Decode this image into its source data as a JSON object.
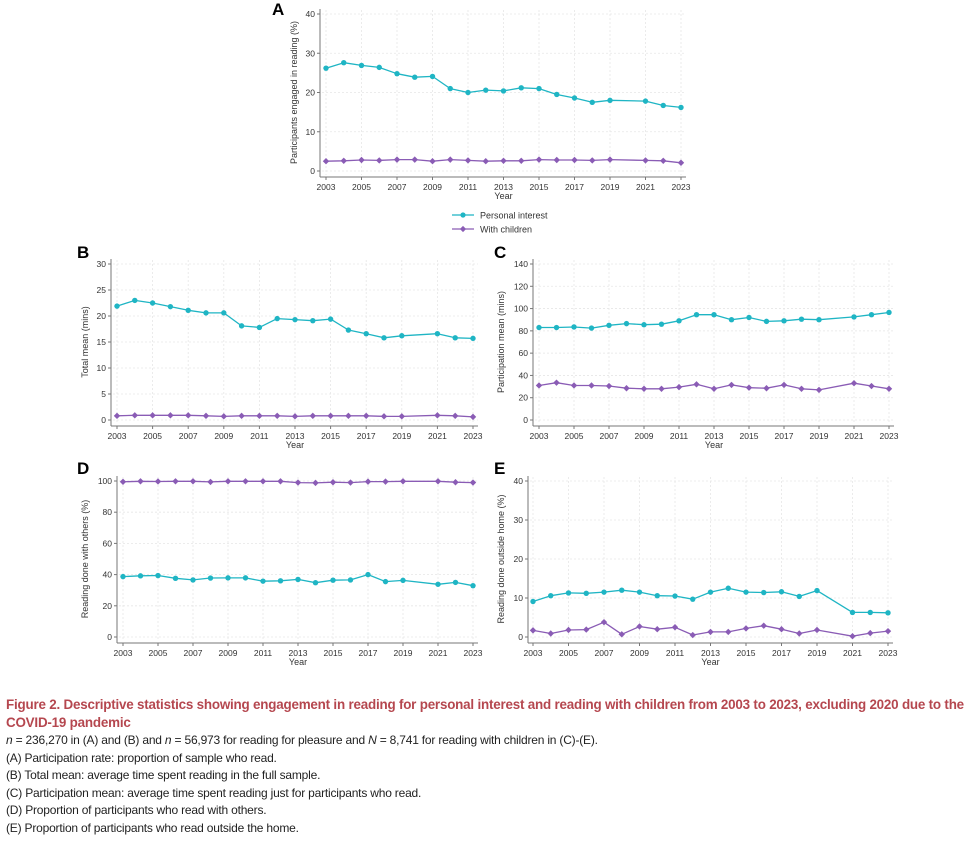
{
  "colors": {
    "personal": "#1fb5c4",
    "children": "#8a5cb5",
    "axis": "#777777",
    "grid": "#e6e6e6",
    "caption_title": "#b5474f"
  },
  "legend": {
    "items": [
      {
        "label": "Personal interest",
        "series": "personal"
      },
      {
        "label": "With children",
        "series": "children"
      }
    ]
  },
  "chart_data": [
    {
      "panel": "A",
      "type": "line",
      "xlabel": "Year",
      "ylabel": "Participants engaged in reading (%)",
      "ylim": [
        0,
        40
      ],
      "yticks": [
        0,
        10,
        20,
        30,
        40
      ],
      "xticks": [
        2003,
        2005,
        2007,
        2009,
        2011,
        2013,
        2015,
        2017,
        2019,
        2021,
        2023
      ],
      "x": [
        2003,
        2004,
        2005,
        2006,
        2007,
        2008,
        2009,
        2010,
        2011,
        2012,
        2013,
        2014,
        2015,
        2016,
        2017,
        2018,
        2019,
        2021,
        2022,
        2023
      ],
      "grid": true,
      "legend": "bottom",
      "series": [
        {
          "name": "Personal interest",
          "key": "personal",
          "values": [
            26.2,
            27.6,
            26.9,
            26.4,
            24.8,
            23.9,
            24.1,
            21.0,
            20.0,
            20.6,
            20.4,
            21.2,
            21.0,
            19.5,
            18.6,
            17.5,
            18.0,
            17.8,
            16.7,
            16.2
          ]
        },
        {
          "name": "With children",
          "key": "children",
          "values": [
            2.5,
            2.6,
            2.8,
            2.7,
            2.9,
            2.9,
            2.5,
            2.9,
            2.7,
            2.5,
            2.6,
            2.6,
            2.9,
            2.8,
            2.8,
            2.7,
            2.9,
            2.7,
            2.6,
            2.1
          ]
        }
      ]
    },
    {
      "panel": "B",
      "type": "line",
      "xlabel": "Year",
      "ylabel": "Total mean (mins)",
      "ylim": [
        0,
        30
      ],
      "yticks": [
        0,
        5,
        10,
        15,
        20,
        25,
        30
      ],
      "xticks": [
        2003,
        2005,
        2007,
        2009,
        2011,
        2013,
        2015,
        2017,
        2019,
        2021,
        2023
      ],
      "x": [
        2003,
        2004,
        2005,
        2006,
        2007,
        2008,
        2009,
        2010,
        2011,
        2012,
        2013,
        2014,
        2015,
        2016,
        2017,
        2018,
        2019,
        2021,
        2022,
        2023
      ],
      "grid": true,
      "series": [
        {
          "name": "Personal interest",
          "key": "personal",
          "values": [
            21.9,
            23.0,
            22.5,
            21.8,
            21.1,
            20.6,
            20.6,
            18.1,
            17.8,
            19.5,
            19.3,
            19.1,
            19.4,
            17.3,
            16.6,
            15.8,
            16.2,
            16.6,
            15.8,
            15.7
          ]
        },
        {
          "name": "With children",
          "key": "children",
          "values": [
            0.8,
            0.9,
            0.9,
            0.9,
            0.9,
            0.8,
            0.7,
            0.8,
            0.8,
            0.8,
            0.7,
            0.8,
            0.8,
            0.8,
            0.8,
            0.7,
            0.7,
            0.9,
            0.8,
            0.6
          ]
        }
      ]
    },
    {
      "panel": "C",
      "type": "line",
      "xlabel": "Year",
      "ylabel": "Participation mean (mins)",
      "ylim": [
        0,
        140
      ],
      "yticks": [
        0,
        20,
        40,
        60,
        80,
        100,
        120,
        140
      ],
      "xticks": [
        2003,
        2005,
        2007,
        2009,
        2011,
        2013,
        2015,
        2017,
        2019,
        2021,
        2023
      ],
      "x": [
        2003,
        2004,
        2005,
        2006,
        2007,
        2008,
        2009,
        2010,
        2011,
        2012,
        2013,
        2014,
        2015,
        2016,
        2017,
        2018,
        2019,
        2021,
        2022,
        2023
      ],
      "grid": true,
      "series": [
        {
          "name": "Personal interest",
          "key": "personal",
          "values": [
            83.0,
            83.0,
            83.5,
            82.5,
            85.0,
            86.5,
            85.5,
            86.0,
            89.0,
            94.5,
            94.5,
            90.0,
            92.0,
            88.5,
            89.0,
            90.5,
            90.0,
            92.5,
            94.5,
            96.5
          ]
        },
        {
          "name": "With children",
          "key": "children",
          "values": [
            31.0,
            33.5,
            31.0,
            31.0,
            30.5,
            28.5,
            28.0,
            28.0,
            29.5,
            32.0,
            28.0,
            31.5,
            29.0,
            28.5,
            31.5,
            28.0,
            27.0,
            33.0,
            30.5,
            28.0
          ]
        }
      ]
    },
    {
      "panel": "D",
      "type": "line",
      "xlabel": "Year",
      "ylabel": "Reading done with others (%)",
      "ylim": [
        0,
        100
      ],
      "yticks": [
        0,
        20,
        40,
        60,
        80,
        100
      ],
      "xticks": [
        2003,
        2005,
        2007,
        2009,
        2011,
        2013,
        2015,
        2017,
        2019,
        2021,
        2023
      ],
      "x": [
        2003,
        2004,
        2005,
        2006,
        2007,
        2008,
        2009,
        2010,
        2011,
        2012,
        2013,
        2014,
        2015,
        2016,
        2017,
        2018,
        2019,
        2021,
        2022,
        2023
      ],
      "grid": true,
      "series": [
        {
          "name": "Personal interest",
          "key": "personal",
          "values": [
            38.7,
            39.2,
            39.4,
            37.6,
            36.6,
            37.8,
            37.9,
            37.9,
            35.8,
            36.0,
            36.9,
            34.8,
            36.4,
            36.6,
            40.0,
            35.5,
            36.3,
            33.8,
            35.0,
            32.9
          ]
        },
        {
          "name": "With children",
          "key": "children",
          "values": [
            99.5,
            99.8,
            99.7,
            99.8,
            99.8,
            99.4,
            99.8,
            99.8,
            99.8,
            99.8,
            99.0,
            98.8,
            99.2,
            99.0,
            99.6,
            99.6,
            99.8,
            99.8,
            99.2,
            99.0
          ]
        }
      ]
    },
    {
      "panel": "E",
      "type": "line",
      "xlabel": "Year",
      "ylabel": "Reading done outside home (%)",
      "ylim": [
        0,
        40
      ],
      "yticks": [
        0,
        10,
        20,
        30,
        40
      ],
      "xticks": [
        2003,
        2005,
        2007,
        2009,
        2011,
        2013,
        2015,
        2017,
        2019,
        2021,
        2023
      ],
      "x": [
        2003,
        2004,
        2005,
        2006,
        2007,
        2008,
        2009,
        2010,
        2011,
        2012,
        2013,
        2014,
        2015,
        2016,
        2017,
        2018,
        2019,
        2021,
        2022,
        2023
      ],
      "grid": true,
      "series": [
        {
          "name": "Personal interest",
          "key": "personal",
          "values": [
            9.1,
            10.6,
            11.3,
            11.2,
            11.5,
            12.0,
            11.5,
            10.6,
            10.5,
            9.7,
            11.5,
            12.5,
            11.5,
            11.4,
            11.6,
            10.4,
            11.9,
            6.3,
            6.3,
            6.2
          ]
        },
        {
          "name": "With children",
          "key": "children",
          "values": [
            1.7,
            0.9,
            1.8,
            1.9,
            3.8,
            0.7,
            2.7,
            2.0,
            2.5,
            0.5,
            1.3,
            1.3,
            2.2,
            2.9,
            2.0,
            0.9,
            1.8,
            0.2,
            1.0,
            1.5
          ]
        }
      ]
    }
  ],
  "caption": {
    "title": "Figure 2.  Descriptive statistics showing engagement in reading for personal interest and reading with children from 2003 to 2023, excluding 2020 due to the COVID-19 pandemic",
    "sample_n1_var": "n",
    "sample_n1_text": " = 236,270 in (A) and (B) and ",
    "sample_n2_var": "n",
    "sample_n2_text": " = 56,973 for reading for pleasure and ",
    "sample_n3_var": "N",
    "sample_n3_text": " = 8,741 for reading with children in (C)-(E).",
    "notes": [
      "(A) Participation rate: proportion of sample who read.",
      "(B) Total mean: average time spent reading in the full sample.",
      "(C) Participation mean: average time spent reading just for participants who read.",
      "(D) Proportion of participants who read with others.",
      "(E) Proportion of participants who read outside the home."
    ]
  }
}
